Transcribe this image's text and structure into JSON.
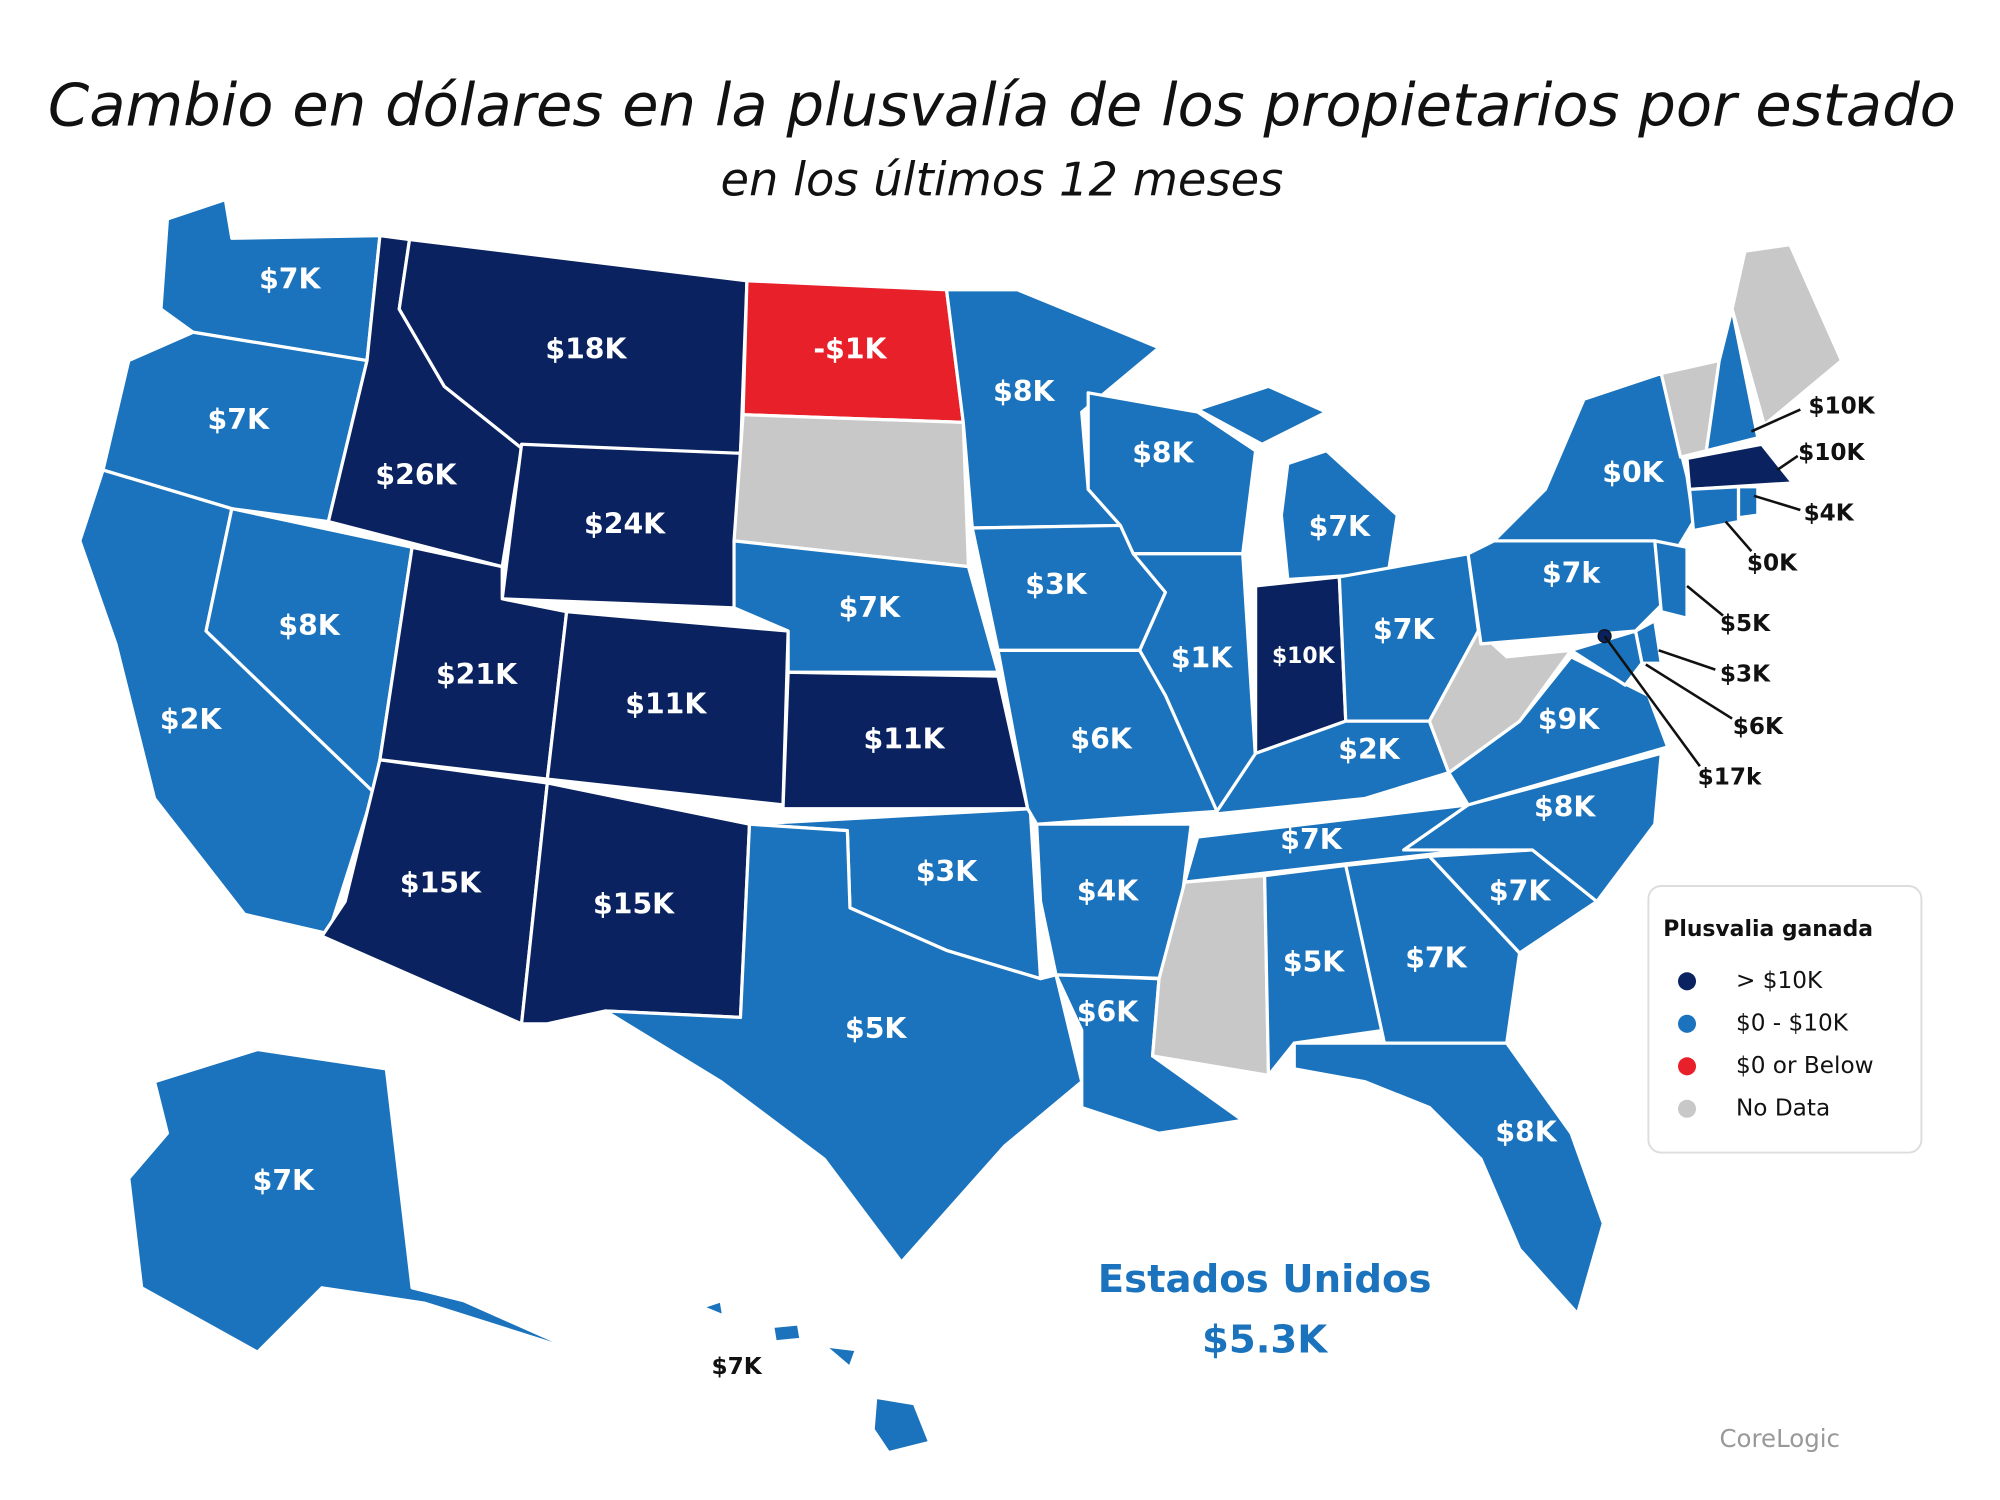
{
  "header": {
    "title": "Cambio en dólares en la plusvalía de los propietarios por estado",
    "subtitle": "en los últimos 12 meses"
  },
  "states": [
    {
      "label": "$7K",
      "color": "#1a73bc"
    },
    {
      "label": "$7K",
      "color": "#1a73bc"
    },
    {
      "label": "$2K",
      "color": "#1a73bc"
    },
    {
      "label": "$8K",
      "color": "#1a73bc"
    },
    {
      "label": "$26K",
      "color": "#0a2260"
    },
    {
      "label": "$18K",
      "color": "#0a2260"
    },
    {
      "label": "$24K",
      "color": "#0a2260"
    },
    {
      "label": "$21K",
      "color": "#0a2260"
    },
    {
      "label": "$11K",
      "color": "#0a2260"
    },
    {
      "label": "$15K",
      "color": "#0a2260"
    },
    {
      "label": "$15K",
      "color": "#0a2260"
    },
    {
      "label": "-$1K",
      "color": "#e8202a"
    },
    {
      "color": "#c8c8c8"
    },
    {
      "label": "$7K",
      "color": "#1a73bc"
    },
    {
      "label": "$11K",
      "color": "#0a2260"
    },
    {
      "label": "$3K",
      "color": "#1a73bc"
    },
    {
      "label": "$5K",
      "color": "#1a73bc"
    },
    {
      "label": "$8K",
      "color": "#1a73bc"
    },
    {
      "label": "$3K",
      "color": "#1a73bc"
    },
    {
      "label": "$6K",
      "color": "#1a73bc"
    },
    {
      "label": "$4K",
      "color": "#1a73bc"
    },
    {
      "label": "$6K",
      "color": "#1a73bc"
    },
    {
      "label": "$8K",
      "color": "#1a73bc"
    },
    {
      "label": "$1K",
      "color": "#1a73bc"
    },
    {
      "label": "$7K",
      "color": "#1a73bc"
    },
    {
      "label": "$10K",
      "color": "#0a2260"
    },
    {
      "label": "$7K",
      "color": "#1a73bc"
    },
    {
      "label": "$2K",
      "color": "#1a73bc"
    },
    {
      "label": "$7K",
      "color": "#1a73bc"
    },
    {
      "color": "#c8c8c8"
    },
    {
      "label": "$5K",
      "color": "#1a73bc"
    },
    {
      "label": "$7K",
      "color": "#1a73bc"
    },
    {
      "label": "$8K",
      "color": "#1a73bc"
    },
    {
      "label": "$7K",
      "color": "#1a73bc"
    },
    {
      "label": "$8K",
      "color": "#1a73bc"
    },
    {
      "label": "$9K",
      "color": "#1a73bc"
    },
    {
      "color": "#c8c8c8"
    },
    {
      "label": "$7k",
      "color": "#1a73bc"
    },
    {
      "label": "$0K",
      "color": "#1a73bc"
    },
    {
      "color": "#c8c8c8"
    },
    {
      "label": "$10K",
      "color": "#1a73bc"
    },
    {
      "color": "#c8c8c8"
    },
    {
      "label": "$10K",
      "color": "#0a2260"
    },
    {
      "label": "$0K",
      "color": "#1a73bc"
    },
    {
      "label": "$4K",
      "color": "#1a73bc"
    },
    {
      "label": "$5K",
      "color": "#1a73bc"
    },
    {
      "label": "$3K",
      "color": "#1a73bc"
    },
    {
      "label": "$6K",
      "color": "#1a73bc"
    },
    {
      "label": "$17k",
      "color": "#0a2260"
    },
    {
      "label": "$7K",
      "color": "#1a73bc"
    },
    {
      "label": "$7K",
      "color": "#1a73bc"
    }
  ],
  "legend": {
    "title": "Plusvalia ganada",
    "items": [
      {
        "label": "> $10K",
        "color": "#0a2260"
      },
      {
        "label": "$0 - $10K",
        "color": "#1a73bc"
      },
      {
        "label": "$0 or Below",
        "color": "#e8202a"
      },
      {
        "label": "No Data",
        "color": "#c8c8c8"
      }
    ]
  },
  "national": {
    "name": "Estados Unidos",
    "value": "$5.3K"
  },
  "source": "CoreLogic"
}
